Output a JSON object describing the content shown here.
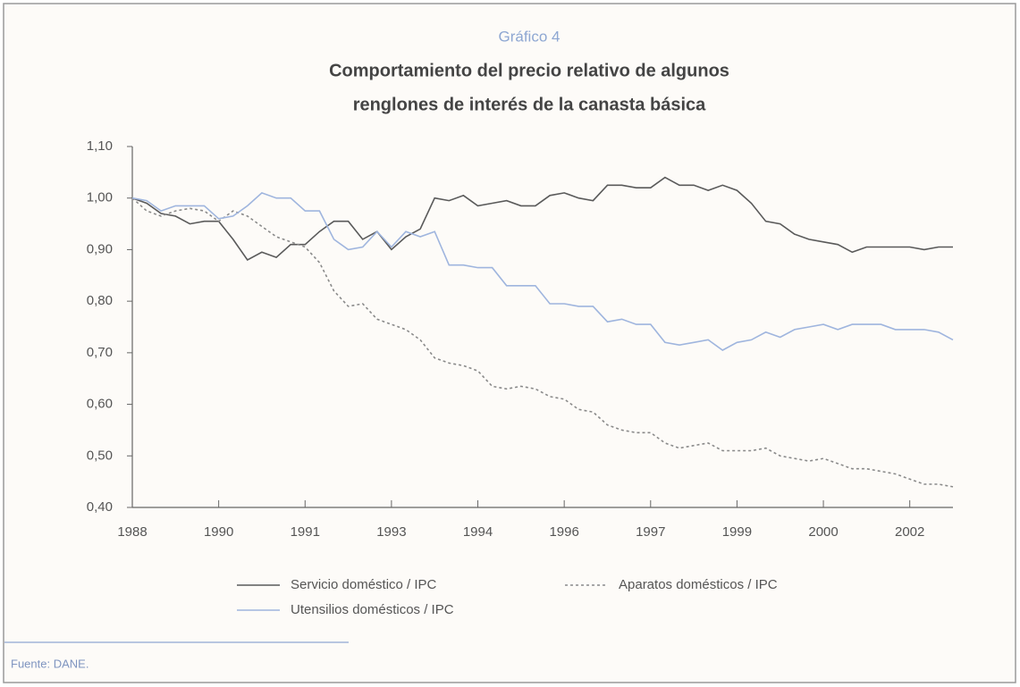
{
  "chart_data": {
    "type": "line",
    "figure_label": "Gráfico 4",
    "title": [
      "Comportamiento del precio relativo de algunos",
      "renglones de interés de la canasta básica"
    ],
    "source": "Fuente: DANE.",
    "categories": [
      "1988",
      null,
      null,
      null,
      null,
      null,
      "1990",
      null,
      null,
      null,
      null,
      null,
      "1991",
      null,
      null,
      null,
      null,
      null,
      "1993",
      null,
      null,
      null,
      null,
      null,
      "1994",
      null,
      null,
      null,
      null,
      null,
      "1996",
      null,
      null,
      null,
      null,
      null,
      "1997",
      null,
      null,
      null,
      null,
      null,
      "1999",
      null,
      null,
      null,
      null,
      null,
      "2000",
      null,
      null,
      null,
      null,
      null,
      "2002",
      null,
      null,
      null
    ],
    "ylim": [
      0.4,
      1.1
    ],
    "yticks": [
      {
        "value": 0.4,
        "label": "0,40"
      },
      {
        "value": 0.5,
        "label": "0,50"
      },
      {
        "value": 0.6,
        "label": "0,60"
      },
      {
        "value": 0.7,
        "label": "0,70"
      },
      {
        "value": 0.8,
        "label": "0,80"
      },
      {
        "value": 0.9,
        "label": "0,90"
      },
      {
        "value": 1.0,
        "label": "1,00"
      },
      {
        "value": 1.1,
        "label": "1,10"
      }
    ],
    "grid": false,
    "series": [
      {
        "name": "Servicio doméstico / IPC",
        "color": "#5a5a5a",
        "linestyle": "solid",
        "values": [
          1.0,
          0.99,
          0.97,
          0.965,
          0.95,
          0.955,
          0.955,
          0.92,
          0.88,
          0.895,
          0.885,
          0.91,
          0.91,
          0.935,
          0.955,
          0.955,
          0.92,
          0.935,
          0.9,
          0.925,
          0.94,
          1.0,
          0.995,
          1.005,
          0.985,
          0.99,
          0.995,
          0.985,
          0.985,
          1.005,
          1.01,
          1.0,
          0.995,
          1.025,
          1.025,
          1.02,
          1.02,
          1.04,
          1.025,
          1.025,
          1.015,
          1.025,
          1.015,
          0.99,
          0.955,
          0.95,
          0.93,
          0.92,
          0.915,
          0.91,
          0.895,
          0.905,
          0.905,
          0.905,
          0.905,
          0.9,
          0.905,
          0.905
        ]
      },
      {
        "name": "Aparatos domésticos / IPC",
        "color": "#8a8a8a",
        "linestyle": "dotted",
        "values": [
          1.0,
          0.975,
          0.965,
          0.975,
          0.98,
          0.975,
          0.955,
          0.975,
          0.965,
          0.945,
          0.925,
          0.915,
          0.905,
          0.875,
          0.82,
          0.79,
          0.795,
          0.765,
          0.755,
          0.745,
          0.725,
          0.69,
          0.68,
          0.675,
          0.665,
          0.635,
          0.63,
          0.635,
          0.63,
          0.615,
          0.61,
          0.59,
          0.585,
          0.56,
          0.55,
          0.545,
          0.545,
          0.525,
          0.515,
          0.52,
          0.525,
          0.51,
          0.51,
          0.51,
          0.515,
          0.5,
          0.495,
          0.49,
          0.495,
          0.485,
          0.475,
          0.475,
          0.47,
          0.465,
          0.455,
          0.445,
          0.445,
          0.44
        ]
      },
      {
        "name": "Utensilios domésticos / IPC",
        "color": "#9fb5de",
        "linestyle": "solid",
        "values": [
          1.0,
          0.995,
          0.975,
          0.985,
          0.985,
          0.985,
          0.96,
          0.965,
          0.985,
          1.01,
          1.0,
          1.0,
          0.975,
          0.975,
          0.92,
          0.9,
          0.905,
          0.935,
          0.905,
          0.935,
          0.925,
          0.935,
          0.87,
          0.87,
          0.865,
          0.865,
          0.83,
          0.83,
          0.83,
          0.795,
          0.795,
          0.79,
          0.79,
          0.76,
          0.765,
          0.755,
          0.755,
          0.72,
          0.715,
          0.72,
          0.725,
          0.705,
          0.72,
          0.725,
          0.74,
          0.73,
          0.745,
          0.75,
          0.755,
          0.745,
          0.755,
          0.755,
          0.755,
          0.745,
          0.745,
          0.745,
          0.74,
          0.725
        ]
      }
    ]
  }
}
